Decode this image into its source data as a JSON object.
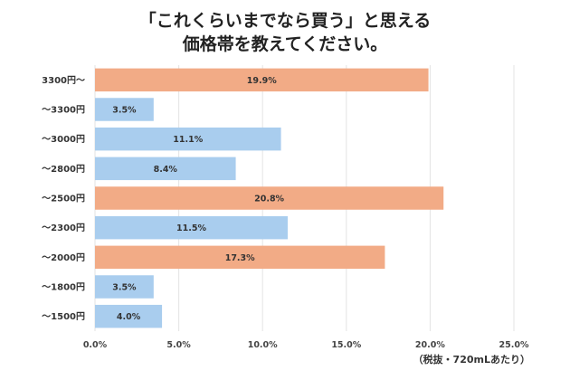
{
  "chart_data": {
    "type": "bar",
    "orientation": "horizontal",
    "title_lines": [
      "「これくらいまでなら買う」と思える",
      "価格帯を教えてください。"
    ],
    "note": "（税抜・720mLあたり）",
    "categories": [
      "3300円〜",
      "〜3300円",
      "〜3000円",
      "〜2800円",
      "〜2500円",
      "〜2300円",
      "〜2000円",
      "〜1800円",
      "〜1500円"
    ],
    "values": [
      19.9,
      3.5,
      11.1,
      8.4,
      20.8,
      11.5,
      17.3,
      3.5,
      4.0
    ],
    "value_labels": [
      "19.9%",
      "3.5%",
      "11.1%",
      "8.4%",
      "20.8%",
      "11.5%",
      "17.3%",
      "3.5%",
      "4.0%"
    ],
    "highlight": [
      true,
      false,
      false,
      false,
      true,
      false,
      true,
      false,
      false
    ],
    "xlim": [
      0,
      25
    ],
    "x_ticks": [
      0,
      5,
      10,
      15,
      20,
      25
    ],
    "x_tick_labels": [
      "0.0%",
      "5.0%",
      "10.0%",
      "15.0%",
      "20.0%",
      "25.0%"
    ],
    "grid": true,
    "colors": {
      "highlight": "#f2ab86",
      "normal": "#a9cdee",
      "grid": "#e3e3e3"
    }
  }
}
